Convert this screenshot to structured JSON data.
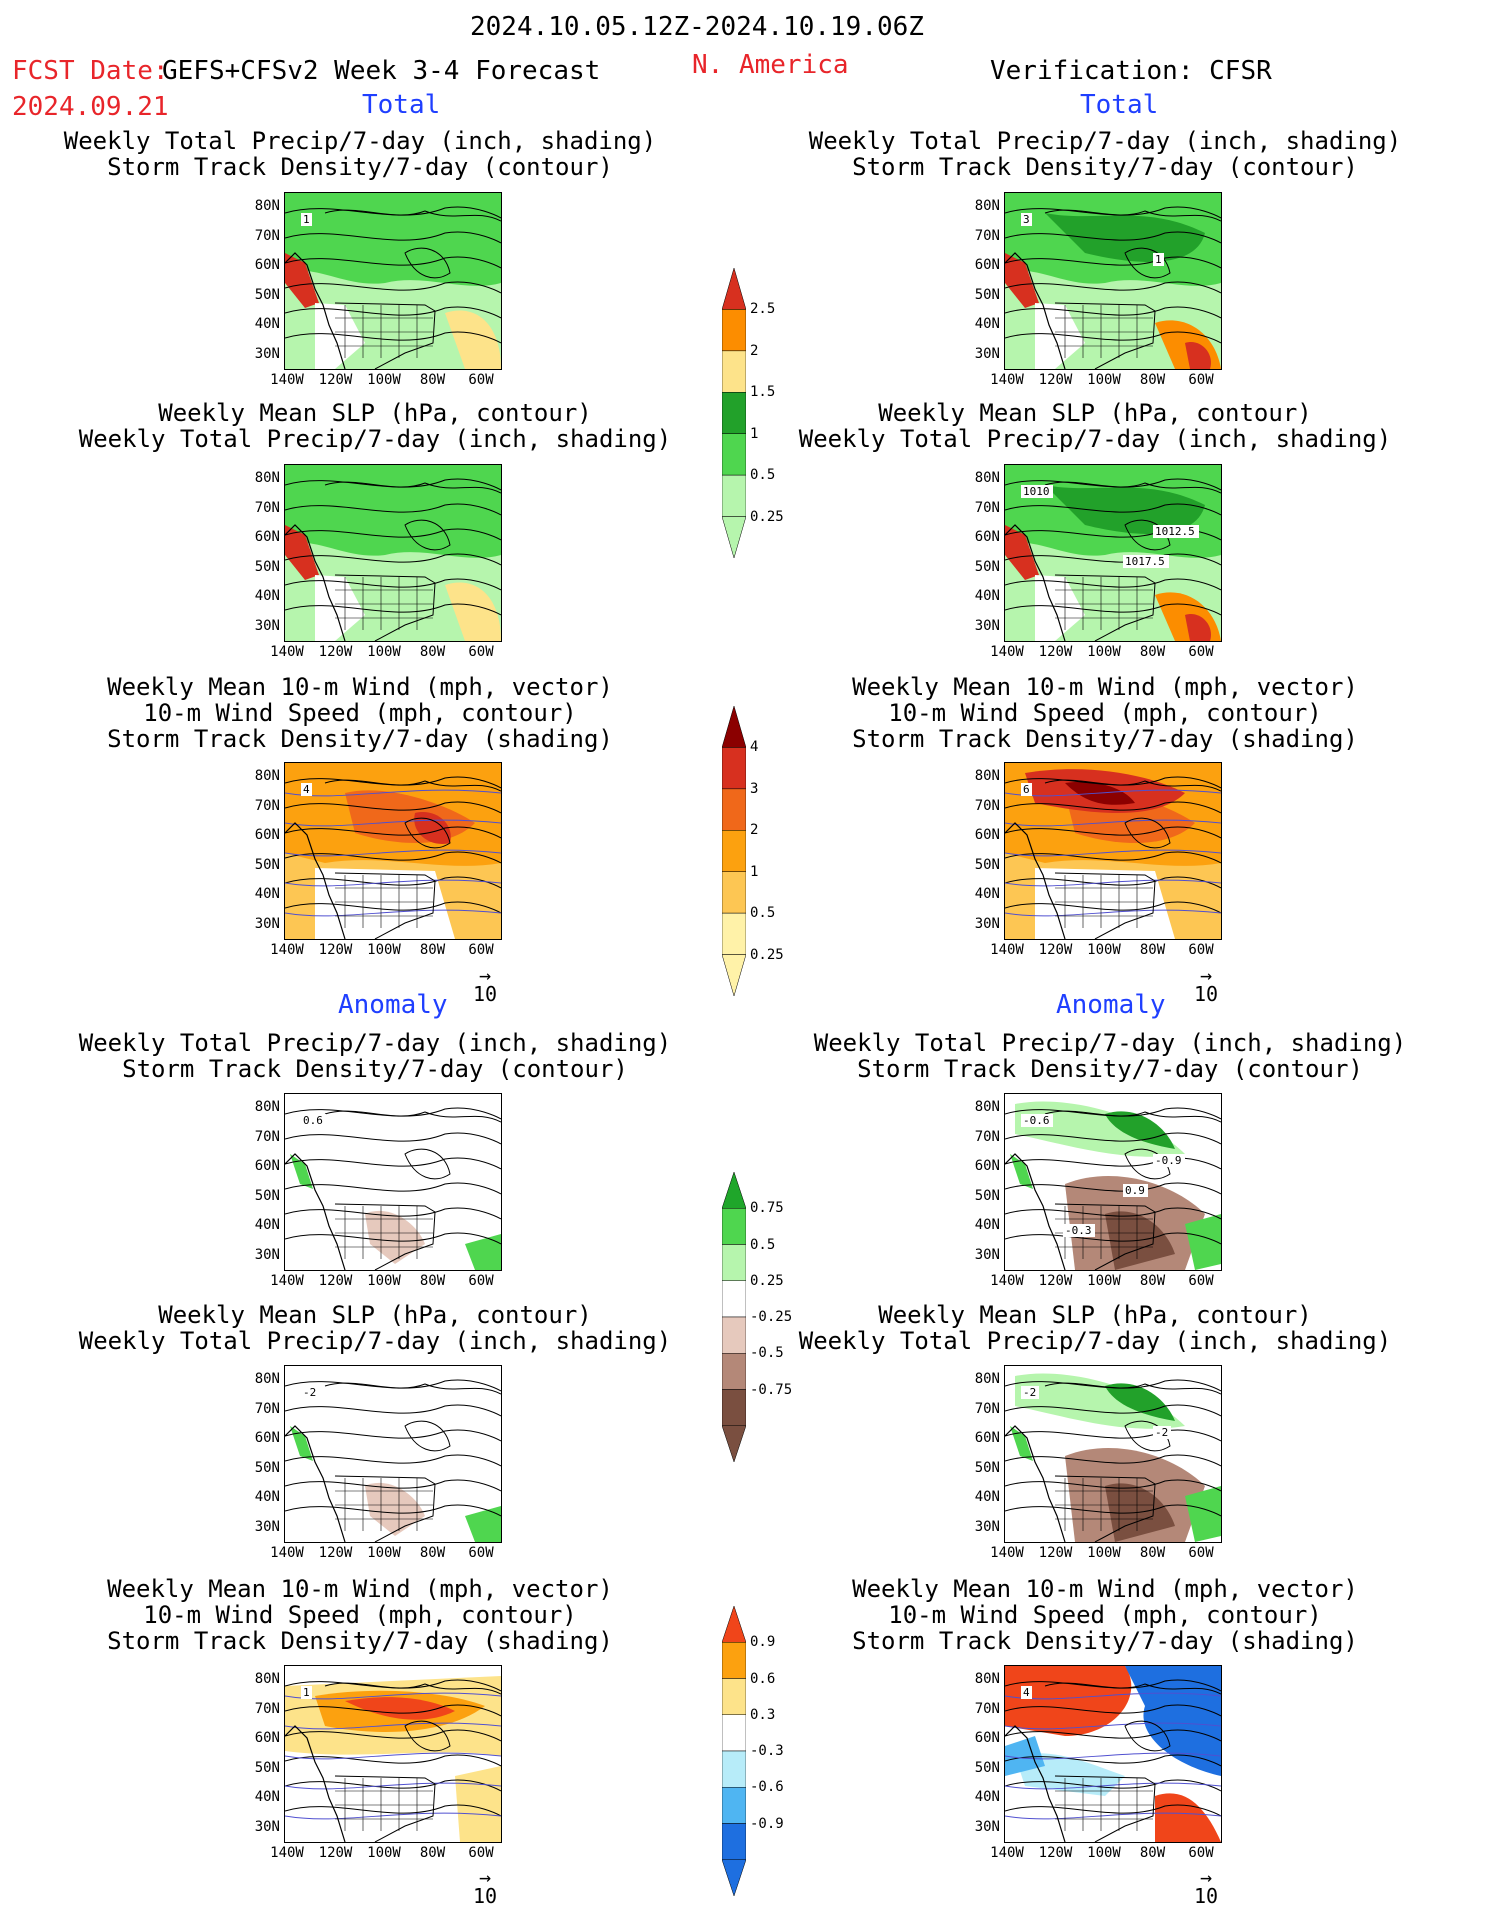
{
  "header": {
    "date_range": "2024.10.05.12Z-2024.10.19.06Z",
    "fcst_label": "FCST Date:",
    "fcst_date": "2024.09.21",
    "model": "GEFS+CFSv2 Week 3-4 Forecast",
    "region": "N. America",
    "verification": "Verification: CFSR",
    "section_total_left": "Total",
    "section_total_right": "Total",
    "section_anom_left": "Anomaly",
    "section_anom_right": "Anomaly"
  },
  "titles": {
    "precip_storm": [
      "Weekly Total Precip/7-day (inch, shading)",
      "Storm Track Density/7-day (contour)"
    ],
    "slp_precip": [
      "Weekly Mean SLP (hPa, contour)",
      "Weekly Total Precip/7-day (inch, shading)"
    ],
    "wind_storm": [
      "Weekly Mean 10-m Wind (mph, vector)",
      "10-m Wind Speed (mph, contour)",
      "Storm Track Density/7-day (shading)"
    ]
  },
  "axes": {
    "lat_labels": [
      "80N",
      "70N",
      "60N",
      "50N",
      "40N",
      "30N"
    ],
    "lon_labels": [
      "140W",
      "120W",
      "100W",
      "80W",
      "60W"
    ]
  },
  "reference_vector": "10",
  "colorbars": {
    "precip_total": {
      "labels": [
        "2.5",
        "2",
        "1.5",
        "1",
        "0.5",
        "0.25"
      ],
      "colors": [
        "#d7301f",
        "#fc8d00",
        "#fde38a",
        "#22a12a",
        "#4fd64f",
        "#b6f5ad"
      ]
    },
    "storm_total": {
      "labels": [
        "4",
        "3",
        "2",
        "1",
        "0.5",
        "0.25"
      ],
      "colors": [
        "#8b0000",
        "#d7301f",
        "#f0681a",
        "#fca10f",
        "#fdc653",
        "#fff2a8"
      ]
    },
    "precip_anom": {
      "labels": [
        "0.75",
        "0.5",
        "0.25",
        "-0.25",
        "-0.5",
        "-0.75"
      ],
      "colors": [
        "#1fa62a",
        "#4fd64f",
        "#b6f5ad",
        "#ffffff",
        "#e6c9bd",
        "#b48878",
        "#7a4f40"
      ]
    },
    "storm_anom": {
      "labels": [
        "0.9",
        "0.6",
        "0.3",
        "-0.3",
        "-0.6",
        "-0.9"
      ],
      "colors": [
        "#f0451a",
        "#fca10f",
        "#fde38a",
        "#ffffff",
        "#b7ecf9",
        "#4fb5f2",
        "#1e6fe0"
      ]
    }
  },
  "map_labels": {
    "t1_left": [
      "1"
    ],
    "t1_right": [
      "3",
      "1"
    ],
    "t2_right": [
      "1010",
      "1012.5",
      "1017.5"
    ],
    "t3_left": [
      "4"
    ],
    "t3_right": [
      "6"
    ],
    "a1_left": [
      "0.6"
    ],
    "a1_right": [
      "-0.6",
      "-0.9",
      "0.9",
      "-0.3"
    ],
    "a2_left": [
      "-2"
    ],
    "a2_right": [
      "-2",
      "-2"
    ],
    "a3_left": [
      "1"
    ],
    "a3_right": [
      "4"
    ]
  }
}
